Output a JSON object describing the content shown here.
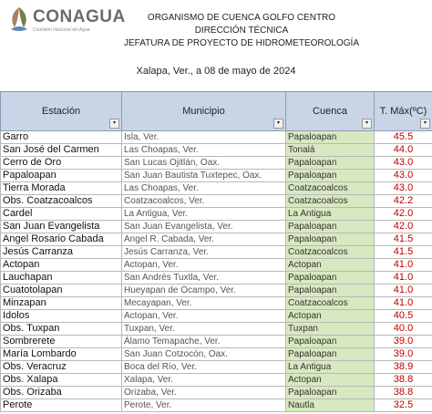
{
  "header": {
    "logo": "CONAGUA",
    "logo_subtitle": "Comisión Nacional del Agua",
    "lines": [
      "ORGANISMO DE CUENCA GOLFO CENTRO",
      "DIRECCIÓN TÉCNICA",
      "JEFATURA DE PROYECTO DE HIDROMETEOROLOGÍA"
    ],
    "date": "Xalapa, Ver., a 08 de mayo de 2024"
  },
  "table": {
    "columns": [
      "Estación",
      "Municipio",
      "Cuenca",
      "T. Máx(ºC)"
    ],
    "rows": [
      [
        "Garro",
        "Isla, Ver.",
        "Papaloapan",
        "45.5"
      ],
      [
        "San José del Carmen",
        "Las Choapas, Ver.",
        "Tonalá",
        "44.0"
      ],
      [
        "Cerro de Oro",
        "San Lucas Ojitlán, Oax.",
        "Papaloapan",
        "43.0"
      ],
      [
        "Papaloapan",
        "San Juan Bautista Tuxtepec, Oax.",
        "Papaloapan",
        "43.0"
      ],
      [
        "Tierra Morada",
        "Las Choapas, Ver.",
        "Coatzacoalcos",
        "43.0"
      ],
      [
        "Obs. Coatzacoalcos",
        "Coatzacoalcos, Ver.",
        "Coatzacoalcos",
        "42.2"
      ],
      [
        "Cardel",
        "La Antigua, Ver.",
        "La Antigua",
        "42.0"
      ],
      [
        "San Juan Evangelista",
        "San Juan Evangelista, Ver.",
        "Papaloapan",
        "42.0"
      ],
      [
        "Angel Rosario Cabada",
        "Angel R. Cabada, Ver.",
        "Papaloapan",
        "41.5"
      ],
      [
        "Jesús Carranza",
        "Jesús Carranza, Ver.",
        "Coatzacoalcos",
        "41.5"
      ],
      [
        "Actopan",
        "Actopan, Ver.",
        "Actopan",
        "41.0"
      ],
      [
        "Lauchapan",
        "San Andrés Tuxtla, Ver.",
        "Papaloapan",
        "41.0"
      ],
      [
        "Cuatotolapan",
        "Hueyapan de Ocampo, Ver.",
        "Papaloapan",
        "41.0"
      ],
      [
        "Minzapan",
        "Mecayapan, Ver.",
        "Coatzacoalcos",
        "41.0"
      ],
      [
        "Idolos",
        "Actopan, Ver.",
        "Actopan",
        "40.5"
      ],
      [
        "Obs. Tuxpan",
        "Tuxpan, Ver.",
        "Tuxpan",
        "40.0"
      ],
      [
        "Sombrerete",
        "Álamo Temapache, Ver.",
        "Papaloapan",
        "39.0"
      ],
      [
        "María Lombardo",
        "San Juan Cotzocón, Oax.",
        "Papaloapan",
        "39.0"
      ],
      [
        "Obs. Veracruz",
        "Boca del Río, Ver.",
        "La Antigua",
        "38.9"
      ],
      [
        "Obs. Xalapa",
        "Xalapa, Ver.",
        "Actopan",
        "38.8"
      ],
      [
        "Obs. Orizaba",
        "Orizaba, Ver.",
        "Papaloapan",
        "38.8"
      ],
      [
        "Perote",
        "Perote, Ver.",
        "Nautla",
        "32.5"
      ]
    ]
  }
}
